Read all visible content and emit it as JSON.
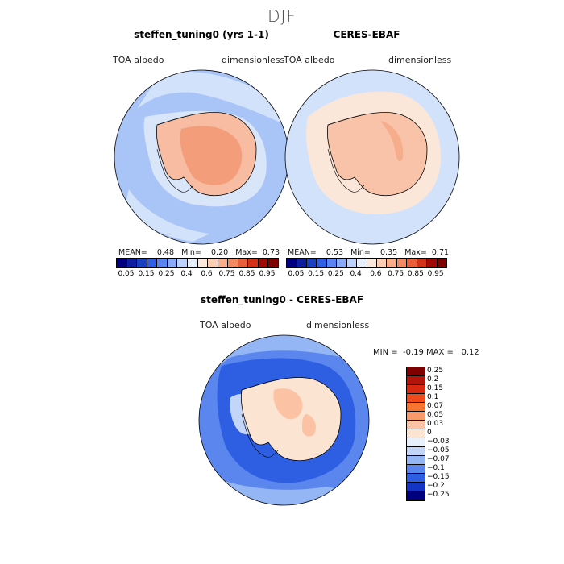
{
  "title": "DJF",
  "panels": [
    {
      "title": "steffen_tuning0 (yrs 1-1)",
      "var": "TOA albedo",
      "units": "dimensionless",
      "mean_label": "MEAN=",
      "mean": "0.48",
      "min_label": "Min=",
      "min": "0.20",
      "max_label": "Max=",
      "max": "0.73"
    },
    {
      "title": "CERES-EBAF",
      "var": "TOA albedo",
      "units": "dimensionless",
      "mean_label": "MEAN=",
      "mean": "0.53",
      "min_label": "Min=",
      "min": "0.35",
      "max_label": "Max=",
      "max": "0.71"
    }
  ],
  "diff": {
    "title": "steffen_tuning0 - CERES-EBAF",
    "var": "TOA albedo",
    "units": "dimensionless",
    "min_label": "MIN =",
    "min": "-0.19",
    "max_label": "MAX =",
    "max": "0.12"
  },
  "chart_data": [
    {
      "type": "heatmap",
      "title": "steffen_tuning0 (yrs 1-1)",
      "projection": "south polar stereographic",
      "variable": "TOA albedo",
      "units": "dimensionless",
      "mean": 0.48,
      "min": 0.2,
      "max": 0.73,
      "colorbar_ticks": [
        "0.05",
        "0.15",
        "0.25",
        "0.4",
        "0.6",
        "0.75",
        "0.85",
        "0.95"
      ]
    },
    {
      "type": "heatmap",
      "title": "CERES-EBAF",
      "projection": "south polar stereographic",
      "variable": "TOA albedo",
      "units": "dimensionless",
      "mean": 0.53,
      "min": 0.35,
      "max": 0.71,
      "colorbar_ticks": [
        "0.05",
        "0.15",
        "0.25",
        "0.4",
        "0.6",
        "0.75",
        "0.85",
        "0.95"
      ]
    },
    {
      "type": "heatmap",
      "title": "steffen_tuning0 - CERES-EBAF",
      "projection": "south polar stereographic",
      "variable": "TOA albedo",
      "units": "dimensionless",
      "min": -0.19,
      "max": 0.12,
      "colorbar_ticks": [
        "0.25",
        "0.2",
        "0.15",
        "0.1",
        "0.07",
        "0.05",
        "0.03",
        "0",
        "−0.03",
        "−0.05",
        "−0.07",
        "−0.1",
        "−0.15",
        "−0.2",
        "−0.25"
      ]
    }
  ],
  "colors": {
    "seq": [
      "#00007f",
      "#0d1f9e",
      "#1a3fbf",
      "#2f5fe0",
      "#5b84f0",
      "#8aaaf5",
      "#bcd1fb",
      "#e6eefc",
      "#fbe9dd",
      "#fbcfb5",
      "#f8ae8c",
      "#f38a63",
      "#e95e3a",
      "#d3301a",
      "#9e0a05",
      "#7f0000"
    ],
    "div": [
      "#7f0000",
      "#b2140a",
      "#d8280f",
      "#ef4a1c",
      "#f8742f",
      "#f99a6d",
      "#fbc3a3",
      "#fce4d3",
      "#e8f0fc",
      "#c3d6fa",
      "#94b6f5",
      "#5a86ee",
      "#2e5fe3",
      "#1335c7",
      "#00007f"
    ]
  }
}
